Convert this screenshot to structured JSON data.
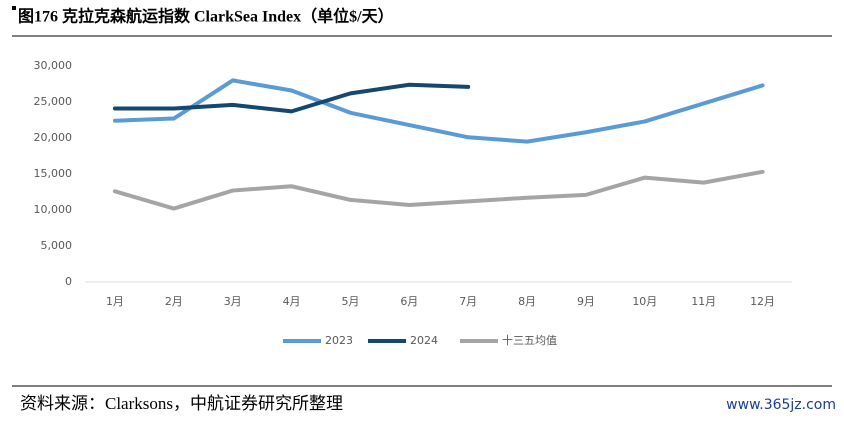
{
  "title": "图176 克拉克森航运指数 ClarkSea Index（单位$/天）",
  "source": "资料来源：Clarksons，中航证券研究所整理",
  "watermark": "www.365jz.com",
  "chart_data": {
    "type": "line",
    "categories": [
      "1月",
      "2月",
      "3月",
      "4月",
      "5月",
      "6月",
      "7月",
      "8月",
      "9月",
      "10月",
      "11月",
      "12月"
    ],
    "series": [
      {
        "name": "2023",
        "color": "#5b9bd5",
        "values": [
          22400,
          22700,
          28000,
          26600,
          23500,
          21800,
          20100,
          19500,
          20800,
          22300,
          24800,
          27300
        ]
      },
      {
        "name": "2024",
        "color": "#14486e",
        "values": [
          24100,
          24100,
          24600,
          23700,
          26200,
          27400,
          27100,
          null,
          null,
          null,
          null,
          null
        ]
      },
      {
        "name": "十三五均值",
        "color": "#a5a5a5",
        "values": [
          12600,
          10200,
          12700,
          13300,
          11400,
          10700,
          11200,
          11700,
          12100,
          14500,
          13800,
          15300
        ]
      }
    ],
    "ylim": [
      0,
      30000
    ],
    "yticks": [
      0,
      {
        "value": 5000,
        "label": "5,000"
      },
      {
        "value": 10000,
        "label": "10,000"
      },
      {
        "value": 15000,
        "label": "15,000"
      },
      {
        "value": 20000,
        "label": "20,000"
      },
      {
        "value": 25000,
        "label": "25,000"
      },
      {
        "value": 30000,
        "label": "30,000"
      }
    ],
    "legend": "bottom"
  }
}
